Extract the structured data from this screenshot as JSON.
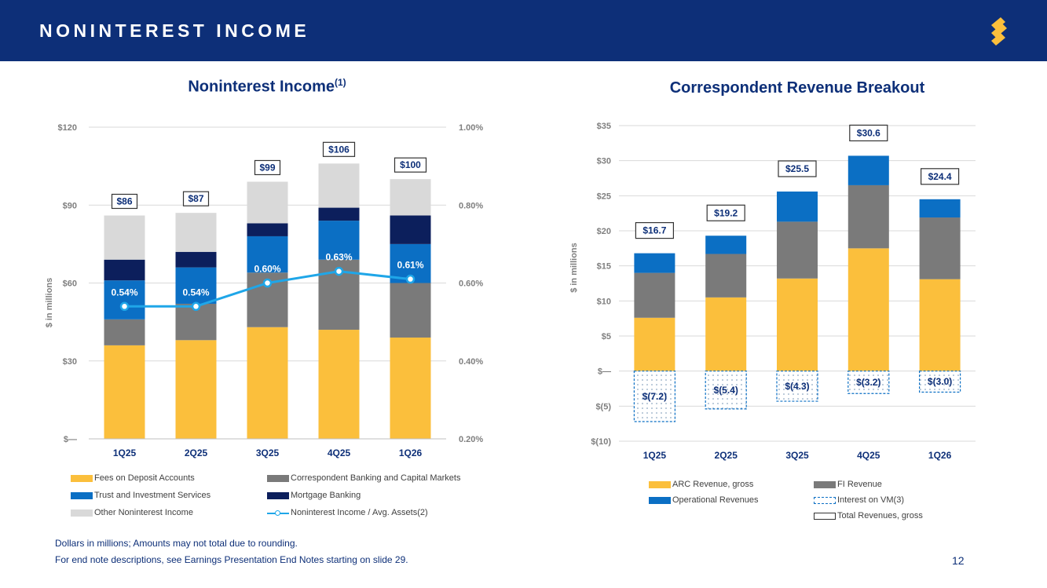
{
  "header": {
    "title": "NONINTEREST INCOME"
  },
  "footnotes": [
    "Dollars in millions; Amounts may not total due to rounding.",
    "For end note descriptions, see Earnings Presentation End Notes starting on slide 29."
  ],
  "page_number": "12",
  "colors": {
    "header_bg": "#0d2f78",
    "fees": "#fbbf3c",
    "correspondent": "#7a7a7a",
    "trust": "#0b6fc4",
    "mortgage": "#0c1f5c",
    "other": "#d9d9d9",
    "ratio_line": "#1fa6e8"
  },
  "chart_data": [
    {
      "type": "bar",
      "stacked": true,
      "title": "Noninterest Income",
      "title_superscript": "(1)",
      "ylabel": "$ in millions",
      "categories": [
        "1Q25",
        "2Q25",
        "3Q25",
        "4Q25",
        "1Q26"
      ],
      "ylim": [
        0,
        120
      ],
      "yticks": [
        "$—",
        "$30",
        "$60",
        "$90",
        "$120"
      ],
      "y2lim": [
        0.2,
        1.0
      ],
      "y2ticks": [
        "0.20%",
        "0.40%",
        "0.60%",
        "0.80%",
        "1.00%"
      ],
      "series": [
        {
          "name": "Fees on Deposit Accounts",
          "color": "#fbbf3c",
          "values": [
            36,
            38,
            43,
            42,
            39
          ]
        },
        {
          "name": "Correspondent Banking and Capital Markets",
          "color": "#7a7a7a",
          "values": [
            10,
            14,
            21,
            27,
            21
          ]
        },
        {
          "name": "Trust and Investment Services",
          "color": "#0b6fc4",
          "values": [
            15,
            14,
            14,
            15,
            15
          ]
        },
        {
          "name": "Mortgage Banking",
          "color": "#0c1f5c",
          "values": [
            8,
            6,
            5,
            5,
            11
          ]
        },
        {
          "name": "Other Noninterest Income",
          "color": "#d9d9d9",
          "values": [
            17,
            15,
            16,
            17,
            14
          ]
        }
      ],
      "totals": [
        "$86",
        "$87",
        "$99",
        "$106",
        "$100"
      ],
      "line": {
        "name": "Noninterest Income / Avg. Assets(2)",
        "values": [
          0.54,
          0.54,
          0.6,
          0.63,
          0.61
        ],
        "labels": [
          "0.54%",
          "0.54%",
          "0.60%",
          "0.63%",
          "0.61%"
        ]
      },
      "grid": true
    },
    {
      "type": "bar",
      "stacked": true,
      "title": "Correspondent Revenue Breakout",
      "ylabel": "$ in millions",
      "categories": [
        "1Q25",
        "2Q25",
        "3Q25",
        "4Q25",
        "1Q26"
      ],
      "ylim": [
        -10,
        35
      ],
      "yticks": [
        "$(10)",
        "$(5)",
        "$—",
        "$5",
        "$10",
        "$15",
        "$20",
        "$25",
        "$30",
        "$35"
      ],
      "series": [
        {
          "name": "ARC Revenue, gross",
          "color": "#fbbf3c",
          "values": [
            7.6,
            10.5,
            13.2,
            17.5,
            13.1
          ]
        },
        {
          "name": "FI Revenue",
          "color": "#7a7a7a",
          "values": [
            6.4,
            6.2,
            8.1,
            9.0,
            8.8
          ]
        },
        {
          "name": "Operational Revenues",
          "color": "#0b6fc4",
          "values": [
            2.8,
            2.6,
            4.3,
            4.2,
            2.6
          ]
        },
        {
          "name": "Interest on VM(3)",
          "color": "#0b6fc4",
          "values": [
            -7.2,
            -5.4,
            -4.3,
            -3.2,
            -3.0
          ]
        }
      ],
      "totals_name": "Total Revenues, gross",
      "totals": [
        "$16.7",
        "$19.2",
        "$25.5",
        "$30.6",
        "$24.4"
      ],
      "negative_labels": [
        "$(7.2)",
        "$(5.4)",
        "$(4.3)",
        "$(3.2)",
        "$(3.0)"
      ],
      "grid": true
    }
  ]
}
